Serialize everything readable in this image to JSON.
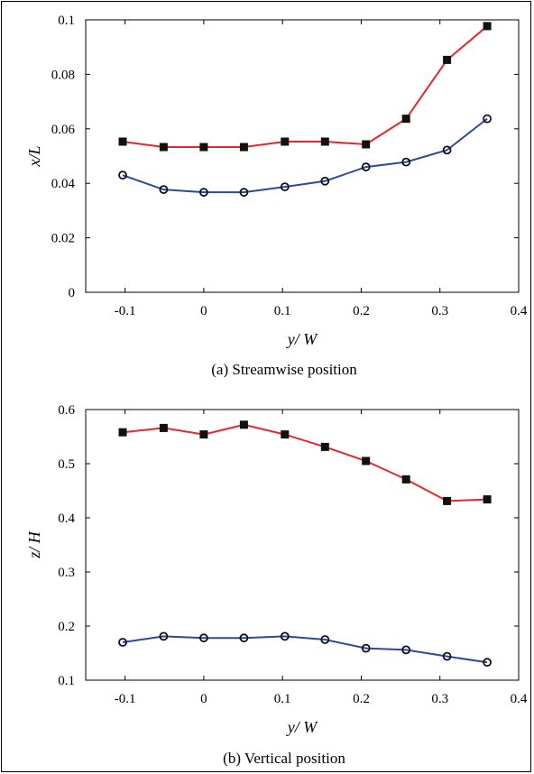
{
  "chart_data": [
    {
      "type": "line",
      "caption": "(a)  Streamwise position",
      "xlabel": "y/ W",
      "ylabel": "x/L",
      "xlim": [
        -0.15,
        0.4
      ],
      "ylim": [
        0,
        0.1
      ],
      "xticks": [
        "-0.1",
        "0",
        "0.1",
        "0.2",
        "0.3",
        "0.4"
      ],
      "yticks": [
        "0",
        "0.02",
        "0.04",
        "0.06",
        "0.08",
        "0.1"
      ],
      "grid": false,
      "x": [
        -0.103,
        -0.051,
        0.0,
        0.051,
        0.103,
        0.154,
        0.206,
        0.257,
        0.309,
        0.36
      ],
      "series": [
        {
          "color": "#e8262b",
          "marker": "square",
          "values": [
            0.0553,
            0.0533,
            0.0533,
            0.0533,
            0.0553,
            0.0553,
            0.0543,
            0.0637,
            0.0853,
            0.0977
          ]
        },
        {
          "color": "#2c4a9c",
          "marker": "circle",
          "values": [
            0.043,
            0.0377,
            0.0367,
            0.0367,
            0.0387,
            0.0408,
            0.046,
            0.0478,
            0.0522,
            0.0637
          ]
        }
      ]
    },
    {
      "type": "line",
      "caption": "(b)  Vertical position",
      "xlabel": "y/ W",
      "ylabel": "z/ H",
      "xlim": [
        -0.15,
        0.4
      ],
      "ylim": [
        0.1,
        0.6
      ],
      "xticks": [
        "-0.1",
        "0",
        "0.1",
        "0.2",
        "0.3",
        "0.4"
      ],
      "yticks": [
        "0.1",
        "0.2",
        "0.3",
        "0.4",
        "0.5",
        "0.6"
      ],
      "grid": false,
      "x": [
        -0.103,
        -0.051,
        0.0,
        0.051,
        0.103,
        0.154,
        0.206,
        0.257,
        0.309,
        0.36
      ],
      "series": [
        {
          "color": "#e8262b",
          "marker": "square",
          "values": [
            0.558,
            0.566,
            0.554,
            0.572,
            0.554,
            0.531,
            0.505,
            0.471,
            0.431,
            0.434
          ]
        },
        {
          "color": "#2c4a9c",
          "marker": "circle",
          "values": [
            0.17,
            0.181,
            0.178,
            0.178,
            0.181,
            0.175,
            0.159,
            0.156,
            0.144,
            0.133
          ]
        }
      ]
    }
  ]
}
